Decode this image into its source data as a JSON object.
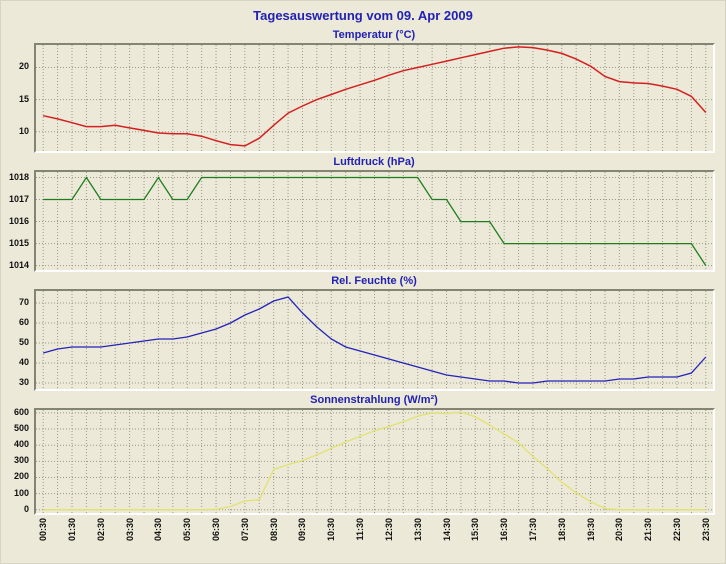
{
  "page": {
    "title": "Tagesauswertung vom 09. Apr 2009",
    "background": "#ece9d8",
    "title_color": "#2121b4",
    "grid_color": "#999884"
  },
  "x_axis": {
    "labels": [
      "00:30",
      "01:30",
      "02:30",
      "03:30",
      "04:30",
      "05:30",
      "06:30",
      "07:30",
      "08:30",
      "09:30",
      "10:30",
      "11:30",
      "12:30",
      "13:30",
      "14:30",
      "15:30",
      "16:30",
      "17:30",
      "18:30",
      "19:30",
      "20:30",
      "21:30",
      "22:30",
      "23:30"
    ]
  },
  "chart_data": [
    {
      "type": "line",
      "title": "Temperatur (°C)",
      "color": "#d42020",
      "ylim": [
        7,
        23.5
      ],
      "yticks": [
        10,
        15,
        20
      ],
      "x_start": 0.5,
      "x_step_hours": 0.5,
      "values": [
        12.5,
        12.0,
        11.4,
        10.8,
        10.8,
        11.0,
        10.6,
        10.2,
        9.8,
        9.7,
        9.7,
        9.3,
        8.6,
        8.0,
        7.8,
        9.0,
        11.0,
        12.9,
        14.0,
        15.0,
        15.8,
        16.6,
        17.3,
        18.0,
        18.8,
        19.5,
        20.0,
        20.5,
        21.0,
        21.5,
        22.0,
        22.5,
        23.0,
        23.2,
        23.1,
        22.7,
        22.2,
        21.3,
        20.2,
        18.6,
        17.8,
        17.6,
        17.5,
        17.1,
        16.6,
        15.5,
        13.0
      ]
    },
    {
      "type": "line",
      "title": "Luftdruck (hPa)",
      "color": "#1e7d1e",
      "ylim": [
        1013.8,
        1018.25
      ],
      "yticks": [
        1014,
        1015,
        1016,
        1017,
        1018
      ],
      "x_start": 0.5,
      "x_step_hours": 0.5,
      "values": [
        1017,
        1017,
        1017,
        1018,
        1017,
        1017,
        1017,
        1017,
        1018,
        1017,
        1017,
        1018,
        1018,
        1018,
        1018,
        1018,
        1018,
        1018,
        1018,
        1018,
        1018,
        1018,
        1018,
        1018,
        1018,
        1018,
        1018,
        1017,
        1017,
        1016,
        1016,
        1016,
        1015,
        1015,
        1015,
        1015,
        1015,
        1015,
        1015,
        1015,
        1015,
        1015,
        1015,
        1015,
        1015,
        1015,
        1014
      ]
    },
    {
      "type": "line",
      "title": "Rel. Feuchte (%)",
      "color": "#2323bb",
      "ylim": [
        27,
        76
      ],
      "yticks": [
        30,
        40,
        50,
        60,
        70
      ],
      "x_start": 0.5,
      "x_step_hours": 0.5,
      "values": [
        45,
        47,
        48,
        48,
        48,
        49,
        50,
        51,
        52,
        52,
        53,
        55,
        57,
        60,
        64,
        67,
        71,
        73,
        65,
        58,
        52,
        48,
        46,
        44,
        42,
        40,
        38,
        36,
        34,
        33,
        32,
        31,
        31,
        30,
        30,
        31,
        31,
        31,
        31,
        31,
        32,
        32,
        33,
        33,
        33,
        35,
        43
      ]
    },
    {
      "type": "line",
      "title": "Sonnenstrahlung (W/m²)",
      "color": "#e2e270",
      "ylim": [
        -20,
        618
      ],
      "yticks": [
        0,
        100,
        200,
        300,
        400,
        500,
        600
      ],
      "x_start": 0.5,
      "x_step_hours": 0.5,
      "values": [
        0,
        0,
        0,
        0,
        0,
        0,
        0,
        0,
        0,
        0,
        0,
        0,
        3,
        20,
        55,
        62,
        250,
        280,
        305,
        340,
        380,
        420,
        455,
        490,
        515,
        545,
        580,
        600,
        595,
        605,
        575,
        525,
        470,
        415,
        330,
        255,
        170,
        105,
        50,
        8,
        0,
        0,
        0,
        0,
        0,
        0,
        0
      ]
    }
  ]
}
